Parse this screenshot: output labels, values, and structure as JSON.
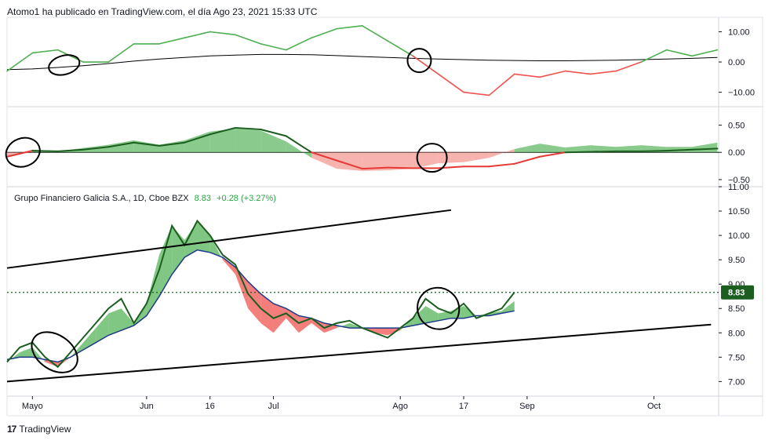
{
  "header": {
    "text": "Atomo1 ha publicado en TradingView.com, el día Ago 23, 2021 15:33 UTC"
  },
  "legend": {
    "name": "Grupo Financiero Galicia S.A., 1D, Cboe BZX",
    "price": "8.83",
    "change": "+0.28 (+3.27%)"
  },
  "brand": {
    "logo": "17",
    "text": "TradingView"
  },
  "colors": {
    "up": "#4caf50",
    "down": "#ef5350",
    "dark_line": "#1b5e20",
    "ma_blue": "#1e3a8a",
    "price_tag_bg": "#1b5e20"
  },
  "chart_data": [
    {
      "type": "line",
      "panel": "oscillator",
      "ytick_labels": [
        "10.00",
        "0.00",
        "−10.00"
      ],
      "yticks": [
        10,
        0,
        -10
      ],
      "ylim": [
        -14,
        13.5
      ],
      "x": [
        0,
        4,
        8,
        12,
        16,
        20,
        24,
        28,
        32,
        36,
        40,
        44,
        48,
        52,
        56,
        60,
        64,
        68,
        72,
        76,
        80,
        84,
        88,
        92,
        96,
        100,
        104,
        108,
        112
      ],
      "series": [
        {
          "values": [
            -3,
            3,
            4,
            0,
            0,
            6,
            6,
            8,
            10,
            9,
            6,
            4,
            8,
            11,
            12,
            7,
            2,
            -4,
            -10,
            -11,
            -4,
            -5,
            -3,
            -4,
            -3,
            0,
            4,
            2,
            4
          ],
          "color_rule": "green above 0, red below 0"
        },
        {
          "values": [
            -2.5,
            -2.3,
            -1.8,
            -1.2,
            -0.5,
            0.3,
            1.0,
            1.5,
            2.0,
            2.3,
            2.5,
            2.5,
            2.4,
            2.1,
            1.8,
            1.5,
            1.2,
            1.0,
            0.8,
            0.6,
            0.5,
            0.4,
            0.4,
            0.5,
            0.6,
            0.8,
            1.0,
            1.2,
            1.5
          ],
          "color": "#000000"
        }
      ],
      "annotations": [
        "ellipse",
        "ellipse"
      ]
    },
    {
      "type": "area",
      "panel": "momentum",
      "ytick_labels": [
        "0.50",
        "0.00",
        "−0.50"
      ],
      "yticks": [
        0.5,
        0,
        -0.5
      ],
      "ylim": [
        -0.63,
        0.78
      ],
      "x": [
        0,
        4,
        8,
        12,
        16,
        20,
        24,
        28,
        32,
        36,
        40,
        44,
        48,
        52,
        56,
        60,
        64,
        68,
        72,
        76,
        80,
        84,
        88,
        92,
        96,
        100,
        104,
        108,
        112
      ],
      "series": [
        {
          "values": [
            -0.08,
            0.05,
            0.02,
            0.08,
            0.14,
            0.22,
            0.14,
            0.22,
            0.38,
            0.44,
            0.4,
            0.2,
            -0.1,
            -0.3,
            -0.34,
            -0.33,
            -0.3,
            -0.2,
            -0.18,
            -0.1,
            0.06,
            0.16,
            0.09,
            0.13,
            0.1,
            0.13,
            0.1,
            0.1,
            0.18
          ],
          "style": "area",
          "color_rule": "green above 0, red below 0"
        },
        {
          "values": [
            -0.08,
            0.03,
            0.02,
            0.05,
            0.1,
            0.18,
            0.12,
            0.18,
            0.33,
            0.45,
            0.42,
            0.3,
            0.0,
            -0.15,
            -0.3,
            -0.28,
            -0.29,
            -0.29,
            -0.26,
            -0.26,
            -0.21,
            -0.08,
            0.0,
            0.01,
            0.02,
            0.02,
            0.03,
            0.05,
            0.07
          ],
          "style": "line",
          "color_rule": "dark green above 0, red below 0"
        }
      ],
      "annotations": [
        "ellipse",
        "ellipse"
      ]
    },
    {
      "type": "line",
      "panel": "price",
      "ytick_labels": [
        "11.00",
        "10.50",
        "10.00",
        "9.50",
        "9.00",
        "8.50",
        "8.00",
        "7.50",
        "7.00"
      ],
      "yticks": [
        11.0,
        10.5,
        10.0,
        9.5,
        9.0,
        8.5,
        8.0,
        7.5,
        7.0
      ],
      "ylim": [
        6.7,
        11.0
      ],
      "xtick_labels": [
        "Mayo",
        "Jun",
        "16",
        "Jul",
        "Ago",
        "17",
        "Sep",
        "Oct"
      ],
      "xticks": [
        4,
        22,
        32,
        42,
        62,
        72,
        82,
        102
      ],
      "last_price_label": "8.83",
      "last_price": 8.83,
      "x": [
        0,
        2,
        4,
        6,
        8,
        10,
        12,
        14,
        16,
        18,
        20,
        22,
        24,
        26,
        28,
        30,
        32,
        34,
        36,
        38,
        40,
        42,
        44,
        46,
        48,
        50,
        52,
        54,
        56,
        58,
        60,
        62,
        64,
        66,
        68,
        70,
        72,
        74,
        76,
        78,
        80
      ],
      "series": [
        {
          "values": [
            7.4,
            7.7,
            7.8,
            7.5,
            7.3,
            7.6,
            7.9,
            8.2,
            8.5,
            8.7,
            8.2,
            8.6,
            9.3,
            10.2,
            9.8,
            10.3,
            10.0,
            9.6,
            9.4,
            8.8,
            8.5,
            8.3,
            8.4,
            8.2,
            8.3,
            8.1,
            8.2,
            8.25,
            8.1,
            8.0,
            7.9,
            8.1,
            8.3,
            8.7,
            8.5,
            8.4,
            8.6,
            8.3,
            8.4,
            8.5,
            8.83
          ],
          "style": "line",
          "color": "#1b5e20"
        },
        {
          "values": [
            7.45,
            7.5,
            7.5,
            7.45,
            7.4,
            7.5,
            7.65,
            7.8,
            7.95,
            8.05,
            8.15,
            8.35,
            8.75,
            9.2,
            9.55,
            9.7,
            9.65,
            9.55,
            9.35,
            9.05,
            8.8,
            8.6,
            8.5,
            8.35,
            8.3,
            8.2,
            8.15,
            8.1,
            8.1,
            8.1,
            8.1,
            8.1,
            8.15,
            8.2,
            8.25,
            8.3,
            8.3,
            8.35,
            8.35,
            8.4,
            8.45
          ],
          "style": "line",
          "color": "#1e3a8a"
        },
        {
          "values": [
            7.4,
            7.6,
            7.7,
            7.4,
            7.3,
            7.5,
            7.8,
            8.1,
            8.4,
            8.5,
            8.2,
            8.6,
            9.6,
            10.2,
            9.9,
            10.3,
            10.0,
            9.5,
            9.2,
            8.5,
            8.2,
            8.0,
            8.3,
            8.0,
            8.2,
            8.0,
            8.1,
            8.2,
            8.1,
            8.0,
            7.95,
            8.05,
            8.3,
            8.55,
            8.4,
            8.45,
            8.55,
            8.35,
            8.4,
            8.45,
            8.65
          ],
          "style": "band",
          "color_rule": "green above blue line, red below blue line"
        }
      ],
      "trendlines": [
        {
          "x": [
            0,
            111
          ],
          "y": [
            7.0,
            8.17
          ]
        },
        {
          "x": [
            0,
            70
          ],
          "y": [
            9.33,
            10.52
          ]
        }
      ],
      "annotations": [
        "ellipse",
        "ellipse"
      ]
    }
  ]
}
